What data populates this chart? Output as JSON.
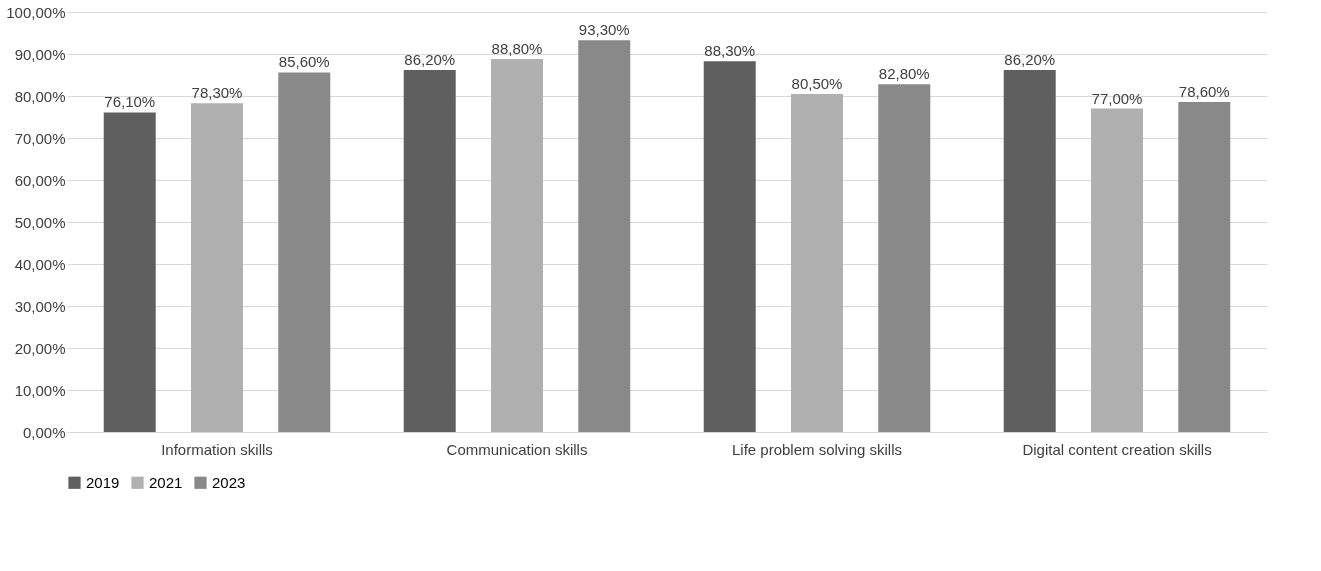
{
  "chart_data": {
    "type": "bar",
    "categories": [
      "Information skills",
      "Communication skills",
      "Life problem solving skills",
      "Digital content creation skills"
    ],
    "series": [
      {
        "name": "2019",
        "color": "#5f5f5f",
        "values": [
          76.1,
          86.2,
          88.3,
          86.2
        ],
        "value_labels": [
          "76,10%",
          "86,20%",
          "88,30%",
          "86,20%"
        ]
      },
      {
        "name": "2021",
        "color": "#b0b0b0",
        "values": [
          78.3,
          88.8,
          80.5,
          77.0
        ],
        "value_labels": [
          "78,30%",
          "88,80%",
          "80,50%",
          "77,00%"
        ]
      },
      {
        "name": "2023",
        "color": "#898989",
        "values": [
          85.6,
          93.3,
          82.8,
          78.6
        ],
        "value_labels": [
          "85,60%",
          "93,30%",
          "82,80%",
          "78,60%"
        ]
      }
    ],
    "ylim": [
      0,
      100
    ],
    "yticks": [
      {
        "value": 0,
        "label": "0,00%"
      },
      {
        "value": 10,
        "label": "10,00%"
      },
      {
        "value": 20,
        "label": "20,00%"
      },
      {
        "value": 30,
        "label": "30,00%"
      },
      {
        "value": 40,
        "label": "40,00%"
      },
      {
        "value": 50,
        "label": "50,00%"
      },
      {
        "value": 60,
        "label": "60,00%"
      },
      {
        "value": 70,
        "label": "70,00%"
      },
      {
        "value": 80,
        "label": "80,00%"
      },
      {
        "value": 90,
        "label": "90,00%"
      },
      {
        "value": 100,
        "label": "100,00%"
      }
    ],
    "grid": "y",
    "legend": "bottom"
  }
}
